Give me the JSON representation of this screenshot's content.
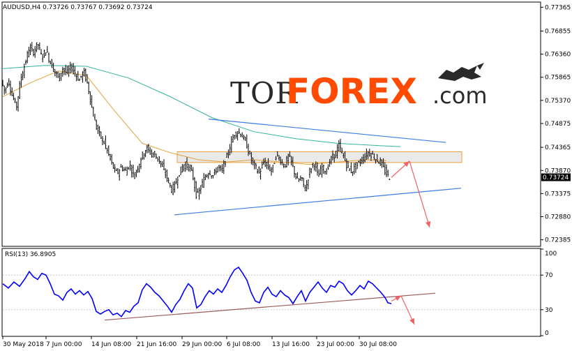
{
  "header": {
    "symbol_text": "AUDUSD,H4  0.73726 0.73767 0.73692 0.73724",
    "rsi_text": "RSI(13) 36.8905"
  },
  "logo": {
    "part1": "TOR",
    "part2": "FOREX",
    "part3": ".com"
  },
  "colors": {
    "candles": "#000000",
    "ma_fast": "#e6a23c",
    "ma_slow": "#35b39a",
    "rsi": "#0000ff",
    "trendline": "#3b7de0",
    "rsi_trend": "#9c5a5a",
    "zone_fill": "#e6e6e6",
    "zone_stroke": "#e9a23b",
    "arrow": "#f06060",
    "logo_accent": "#ff4a00"
  },
  "chart_data": [
    {
      "type": "line",
      "title": "AUDUSD,H4",
      "ylim": [
        0.7226,
        0.7746
      ],
      "y_ticks": [
        "0.77365",
        "0.76855",
        "0.76360",
        "0.75865",
        "0.75370",
        "0.74875",
        "0.74365",
        "0.73870",
        "0.73375",
        "0.72880",
        "0.72385"
      ],
      "x_ticks": [
        "30 May 2018",
        "7 Jun 00:00",
        "14 Jun 08:00",
        "21 Jun 16:00",
        "29 Jun 00:00",
        "6 Jul 08:00",
        "13 Jul 16:00",
        "23 Jul 00:00",
        "30 Jul 08:00"
      ],
      "current_price": "0.73724",
      "price_path": [
        {
          "t": 0,
          "v": 0.758
        },
        {
          "t": 5,
          "v": 0.7555
        },
        {
          "t": 10,
          "v": 0.7582
        },
        {
          "t": 16,
          "v": 0.7545
        },
        {
          "t": 22,
          "v": 0.7525
        },
        {
          "t": 28,
          "v": 0.7585
        },
        {
          "t": 34,
          "v": 0.7615
        },
        {
          "t": 40,
          "v": 0.765
        },
        {
          "t": 46,
          "v": 0.764
        },
        {
          "t": 52,
          "v": 0.766
        },
        {
          "t": 58,
          "v": 0.763
        },
        {
          "t": 64,
          "v": 0.7645
        },
        {
          "t": 70,
          "v": 0.762
        },
        {
          "t": 76,
          "v": 0.76
        },
        {
          "t": 82,
          "v": 0.7585
        },
        {
          "t": 88,
          "v": 0.7605
        },
        {
          "t": 94,
          "v": 0.7595
        },
        {
          "t": 100,
          "v": 0.761
        },
        {
          "t": 106,
          "v": 0.7595
        },
        {
          "t": 112,
          "v": 0.758
        },
        {
          "t": 118,
          "v": 0.76
        },
        {
          "t": 124,
          "v": 0.757
        },
        {
          "t": 130,
          "v": 0.752
        },
        {
          "t": 136,
          "v": 0.748
        },
        {
          "t": 142,
          "v": 0.746
        },
        {
          "t": 148,
          "v": 0.7445
        },
        {
          "t": 154,
          "v": 0.742
        },
        {
          "t": 160,
          "v": 0.7395
        },
        {
          "t": 166,
          "v": 0.738
        },
        {
          "t": 172,
          "v": 0.7395
        },
        {
          "t": 178,
          "v": 0.7385
        },
        {
          "t": 184,
          "v": 0.74
        },
        {
          "t": 190,
          "v": 0.7375
        },
        {
          "t": 196,
          "v": 0.7395
        },
        {
          "t": 202,
          "v": 0.742
        },
        {
          "t": 208,
          "v": 0.7435
        },
        {
          "t": 214,
          "v": 0.7425
        },
        {
          "t": 220,
          "v": 0.742
        },
        {
          "t": 226,
          "v": 0.741
        },
        {
          "t": 232,
          "v": 0.739
        },
        {
          "t": 238,
          "v": 0.737
        },
        {
          "t": 244,
          "v": 0.7345
        },
        {
          "t": 250,
          "v": 0.736
        },
        {
          "t": 256,
          "v": 0.7385
        },
        {
          "t": 262,
          "v": 0.74
        },
        {
          "t": 268,
          "v": 0.7395
        },
        {
          "t": 274,
          "v": 0.738
        },
        {
          "t": 280,
          "v": 0.733
        },
        {
          "t": 286,
          "v": 0.735
        },
        {
          "t": 292,
          "v": 0.7375
        },
        {
          "t": 298,
          "v": 0.7385
        },
        {
          "t": 304,
          "v": 0.7375
        },
        {
          "t": 310,
          "v": 0.7395
        },
        {
          "t": 316,
          "v": 0.7385
        },
        {
          "t": 322,
          "v": 0.741
        },
        {
          "t": 328,
          "v": 0.744
        },
        {
          "t": 334,
          "v": 0.7465
        },
        {
          "t": 340,
          "v": 0.747
        },
        {
          "t": 346,
          "v": 0.746
        },
        {
          "t": 352,
          "v": 0.744
        },
        {
          "t": 358,
          "v": 0.741
        },
        {
          "t": 364,
          "v": 0.7395
        },
        {
          "t": 370,
          "v": 0.738
        },
        {
          "t": 376,
          "v": 0.7405
        },
        {
          "t": 382,
          "v": 0.7395
        },
        {
          "t": 388,
          "v": 0.7385
        },
        {
          "t": 394,
          "v": 0.742
        },
        {
          "t": 400,
          "v": 0.741
        },
        {
          "t": 406,
          "v": 0.7395
        },
        {
          "t": 412,
          "v": 0.742
        },
        {
          "t": 418,
          "v": 0.7395
        },
        {
          "t": 424,
          "v": 0.7365
        },
        {
          "t": 430,
          "v": 0.737
        },
        {
          "t": 436,
          "v": 0.7345
        },
        {
          "t": 442,
          "v": 0.7385
        },
        {
          "t": 448,
          "v": 0.7405
        },
        {
          "t": 454,
          "v": 0.7375
        },
        {
          "t": 460,
          "v": 0.7395
        },
        {
          "t": 466,
          "v": 0.7385
        },
        {
          "t": 472,
          "v": 0.741
        },
        {
          "t": 478,
          "v": 0.742
        },
        {
          "t": 484,
          "v": 0.744
        },
        {
          "t": 490,
          "v": 0.742
        },
        {
          "t": 496,
          "v": 0.7395
        },
        {
          "t": 502,
          "v": 0.7385
        },
        {
          "t": 508,
          "v": 0.7395
        },
        {
          "t": 514,
          "v": 0.7405
        },
        {
          "t": 520,
          "v": 0.7415
        },
        {
          "t": 526,
          "v": 0.7425
        },
        {
          "t": 532,
          "v": 0.742
        },
        {
          "t": 538,
          "v": 0.741
        },
        {
          "t": 544,
          "v": 0.7405
        },
        {
          "t": 550,
          "v": 0.7385
        },
        {
          "t": 556,
          "v": 0.7372
        }
      ],
      "ma_fast": [
        {
          "t": 0,
          "v": 0.7545
        },
        {
          "t": 40,
          "v": 0.7575
        },
        {
          "t": 80,
          "v": 0.76
        },
        {
          "t": 120,
          "v": 0.759
        },
        {
          "t": 160,
          "v": 0.7515
        },
        {
          "t": 200,
          "v": 0.7445
        },
        {
          "t": 240,
          "v": 0.7425
        },
        {
          "t": 280,
          "v": 0.741
        },
        {
          "t": 320,
          "v": 0.7405
        },
        {
          "t": 360,
          "v": 0.741
        },
        {
          "t": 400,
          "v": 0.7405
        },
        {
          "t": 440,
          "v": 0.74
        },
        {
          "t": 480,
          "v": 0.7405
        },
        {
          "t": 520,
          "v": 0.741
        },
        {
          "t": 550,
          "v": 0.7408
        }
      ],
      "ma_slow": [
        {
          "t": 0,
          "v": 0.7605
        },
        {
          "t": 60,
          "v": 0.7612
        },
        {
          "t": 120,
          "v": 0.761
        },
        {
          "t": 180,
          "v": 0.7585
        },
        {
          "t": 240,
          "v": 0.7545
        },
        {
          "t": 300,
          "v": 0.75
        },
        {
          "t": 360,
          "v": 0.747
        },
        {
          "t": 420,
          "v": 0.7455
        },
        {
          "t": 480,
          "v": 0.7445
        },
        {
          "t": 540,
          "v": 0.744
        },
        {
          "t": 570,
          "v": 0.7438
        }
      ],
      "trend_upper": [
        {
          "t": 295,
          "v": 0.7497
        },
        {
          "t": 635,
          "v": 0.7447
        }
      ],
      "trend_lower": [
        {
          "t": 246,
          "v": 0.7292
        },
        {
          "t": 657,
          "v": 0.7349
        }
      ],
      "zone": {
        "t_start": 250,
        "t_end": 658,
        "v_top": 0.7427,
        "v_bottom": 0.7404
      },
      "arrows": [
        {
          "from": {
            "t": 557,
            "v": 0.7372
          },
          "to": {
            "t": 583,
            "v": 0.7407
          }
        },
        {
          "from": {
            "t": 583,
            "v": 0.7407
          },
          "to": {
            "t": 612,
            "v": 0.7265
          }
        }
      ]
    },
    {
      "type": "line",
      "title": "RSI(13) 36.8905",
      "ylim": [
        0,
        100
      ],
      "y_ticks": [
        "100",
        "70",
        "30",
        "0"
      ],
      "values": [
        {
          "t": 0,
          "v": 60
        },
        {
          "t": 8,
          "v": 55
        },
        {
          "t": 16,
          "v": 62
        },
        {
          "t": 24,
          "v": 57
        },
        {
          "t": 32,
          "v": 66
        },
        {
          "t": 38,
          "v": 74
        },
        {
          "t": 44,
          "v": 68
        },
        {
          "t": 50,
          "v": 65
        },
        {
          "t": 56,
          "v": 72
        },
        {
          "t": 62,
          "v": 70
        },
        {
          "t": 68,
          "v": 60
        },
        {
          "t": 74,
          "v": 48
        },
        {
          "t": 80,
          "v": 46
        },
        {
          "t": 86,
          "v": 41
        },
        {
          "t": 92,
          "v": 50
        },
        {
          "t": 98,
          "v": 54
        },
        {
          "t": 104,
          "v": 48
        },
        {
          "t": 110,
          "v": 52
        },
        {
          "t": 116,
          "v": 47
        },
        {
          "t": 122,
          "v": 51
        },
        {
          "t": 128,
          "v": 43
        },
        {
          "t": 134,
          "v": 28
        },
        {
          "t": 140,
          "v": 25
        },
        {
          "t": 146,
          "v": 28
        },
        {
          "t": 152,
          "v": 30
        },
        {
          "t": 158,
          "v": 24
        },
        {
          "t": 164,
          "v": 26
        },
        {
          "t": 170,
          "v": 22
        },
        {
          "t": 176,
          "v": 29
        },
        {
          "t": 182,
          "v": 27
        },
        {
          "t": 188,
          "v": 34
        },
        {
          "t": 194,
          "v": 38
        },
        {
          "t": 200,
          "v": 53
        },
        {
          "t": 206,
          "v": 60
        },
        {
          "t": 212,
          "v": 56
        },
        {
          "t": 218,
          "v": 50
        },
        {
          "t": 224,
          "v": 46
        },
        {
          "t": 230,
          "v": 40
        },
        {
          "t": 236,
          "v": 34
        },
        {
          "t": 242,
          "v": 27
        },
        {
          "t": 248,
          "v": 36
        },
        {
          "t": 254,
          "v": 42
        },
        {
          "t": 260,
          "v": 52
        },
        {
          "t": 266,
          "v": 60
        },
        {
          "t": 272,
          "v": 55
        },
        {
          "t": 278,
          "v": 32
        },
        {
          "t": 284,
          "v": 36
        },
        {
          "t": 290,
          "v": 45
        },
        {
          "t": 296,
          "v": 52
        },
        {
          "t": 302,
          "v": 48
        },
        {
          "t": 308,
          "v": 54
        },
        {
          "t": 314,
          "v": 50
        },
        {
          "t": 320,
          "v": 58
        },
        {
          "t": 326,
          "v": 68
        },
        {
          "t": 332,
          "v": 76
        },
        {
          "t": 338,
          "v": 79
        },
        {
          "t": 344,
          "v": 72
        },
        {
          "t": 350,
          "v": 64
        },
        {
          "t": 356,
          "v": 50
        },
        {
          "t": 362,
          "v": 40
        },
        {
          "t": 368,
          "v": 38
        },
        {
          "t": 374,
          "v": 50
        },
        {
          "t": 380,
          "v": 56
        },
        {
          "t": 386,
          "v": 48
        },
        {
          "t": 392,
          "v": 45
        },
        {
          "t": 398,
          "v": 52
        },
        {
          "t": 404,
          "v": 47
        },
        {
          "t": 410,
          "v": 44
        },
        {
          "t": 416,
          "v": 37
        },
        {
          "t": 422,
          "v": 45
        },
        {
          "t": 428,
          "v": 52
        },
        {
          "t": 434,
          "v": 40
        },
        {
          "t": 440,
          "v": 50
        },
        {
          "t": 446,
          "v": 56
        },
        {
          "t": 452,
          "v": 62
        },
        {
          "t": 458,
          "v": 55
        },
        {
          "t": 464,
          "v": 50
        },
        {
          "t": 470,
          "v": 58
        },
        {
          "t": 476,
          "v": 56
        },
        {
          "t": 482,
          "v": 63
        },
        {
          "t": 488,
          "v": 60
        },
        {
          "t": 494,
          "v": 52
        },
        {
          "t": 500,
          "v": 47
        },
        {
          "t": 506,
          "v": 52
        },
        {
          "t": 512,
          "v": 58
        },
        {
          "t": 518,
          "v": 54
        },
        {
          "t": 524,
          "v": 63
        },
        {
          "t": 530,
          "v": 60
        },
        {
          "t": 536,
          "v": 55
        },
        {
          "t": 542,
          "v": 50
        },
        {
          "t": 548,
          "v": 44
        },
        {
          "t": 552,
          "v": 38
        },
        {
          "t": 557,
          "v": 37
        }
      ],
      "trend": [
        {
          "t": 146,
          "v": 18
        },
        {
          "t": 620,
          "v": 49
        }
      ],
      "arrows": [
        {
          "from": {
            "t": 557,
            "v": 40
          },
          "to": {
            "t": 571,
            "v": 46
          }
        },
        {
          "from": {
            "t": 571,
            "v": 46
          },
          "to": {
            "t": 590,
            "v": 13
          }
        }
      ]
    }
  ]
}
